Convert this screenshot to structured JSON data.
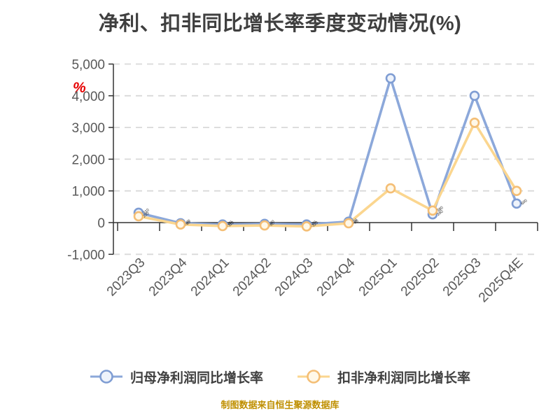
{
  "title": "净利、扣非同比增长率季度变动情况(%)",
  "unit_annotation": "%",
  "footer": "制图数据来自恒生聚源数据库",
  "legend": {
    "items": [
      {
        "label": "归母净利润同比增长率",
        "line_color": "#8ca8da",
        "marker_stroke": "#7f9dd3",
        "marker_fill": "#eef3fb"
      },
      {
        "label": "扣非净利润同比增长率",
        "line_color": "#fbd68f",
        "marker_stroke": "#f4be75",
        "marker_fill": "#fff8e8"
      }
    ],
    "position": "bottom"
  },
  "chart_data": {
    "type": "line",
    "categories": [
      "2023Q3",
      "2023Q4",
      "2024Q1",
      "2024Q2",
      "2024Q3",
      "2024Q4",
      "2025Q1",
      "2025Q2",
      "2025Q3",
      "2025Q4E"
    ],
    "series": [
      {
        "name": "归母净利润同比增长率",
        "color": "#8ca8da",
        "marker_stroke": "#7f9dd3",
        "marker_fill": "#eef3fb",
        "values": [
          310,
          -20,
          -60,
          -40,
          -60,
          30,
          4550,
          260,
          4000,
          600
        ]
      },
      {
        "name": "扣非净利润同比增长率",
        "color": "#fbd68f",
        "marker_stroke": "#f4be75",
        "marker_fill": "#fff8e8",
        "values": [
          200,
          -60,
          -110,
          -90,
          -120,
          -20,
          1080,
          380,
          3150,
          1000
        ]
      }
    ],
    "ylabel": "",
    "xlabel": "",
    "ylim": [
      -1000,
      5000
    ],
    "yticks": [
      5000,
      4000,
      3000,
      2000,
      1000,
      0,
      -1000
    ],
    "ytick_labels": [
      "5,000",
      "4,000",
      "3,000",
      "2,000",
      "1,000",
      "0",
      "-1,000"
    ],
    "grid": "horizontal-dashed",
    "gridline_color": "#d9d9d9",
    "axis_color": "#333333",
    "tick_label_color": "#595959",
    "legend_position": "bottom",
    "x_labels_rotated_deg": -45
  }
}
